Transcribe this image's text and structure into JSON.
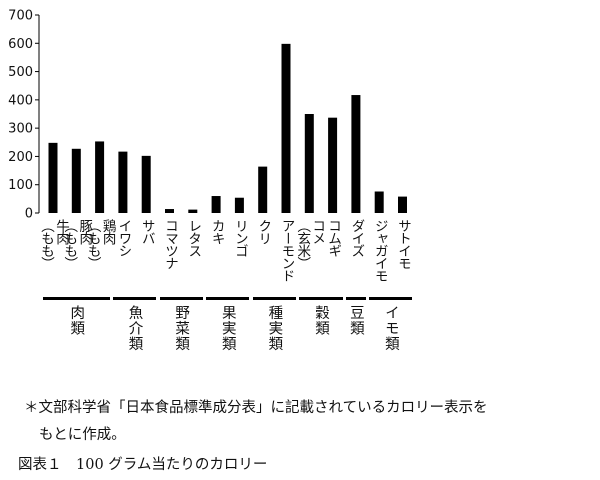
{
  "chart_data": {
    "type": "bar",
    "title": "",
    "xlabel": "",
    "ylabel": "",
    "ylim": [
      0,
      700
    ],
    "yticks": [
      0,
      100,
      200,
      300,
      400,
      500,
      600,
      700
    ],
    "grid": false,
    "legend": "none",
    "bar_color": "#000000",
    "categories": [
      {
        "line1": "牛肉",
        "line2": "（もも）"
      },
      {
        "line1": "豚肉",
        "line2": "（もも）"
      },
      {
        "line1": "鶏肉",
        "line2": "（もも）"
      },
      {
        "line1": "イワシ",
        "line2": ""
      },
      {
        "line1": "サバ",
        "line2": ""
      },
      {
        "line1": "コマツナ",
        "line2": ""
      },
      {
        "line1": "レタス",
        "line2": ""
      },
      {
        "line1": "カキ",
        "line2": ""
      },
      {
        "line1": "リンゴ",
        "line2": ""
      },
      {
        "line1": "クリ",
        "line2": ""
      },
      {
        "line1": "アーモンド",
        "line2": ""
      },
      {
        "line1": "コメ",
        "line2": "（玄米）"
      },
      {
        "line1": "コムギ",
        "line2": ""
      },
      {
        "line1": "ダイズ",
        "line2": ""
      },
      {
        "line1": "ジャガイモ",
        "line2": ""
      },
      {
        "line1": "サトイモ",
        "line2": ""
      }
    ],
    "values": [
      248,
      227,
      253,
      217,
      202,
      14,
      12,
      60,
      54,
      164,
      598,
      350,
      337,
      417,
      76,
      58
    ],
    "groups": [
      {
        "label": "肉類",
        "start": 0,
        "end": 2
      },
      {
        "label": "魚介類",
        "start": 3,
        "end": 4
      },
      {
        "label": "野菜類",
        "start": 5,
        "end": 6
      },
      {
        "label": "果実類",
        "start": 7,
        "end": 8
      },
      {
        "label": "種実類",
        "start": 9,
        "end": 10
      },
      {
        "label": "穀類",
        "start": 11,
        "end": 12
      },
      {
        "label": "豆類",
        "start": 13,
        "end": 13
      },
      {
        "label": "イモ類",
        "start": 14,
        "end": 15
      }
    ]
  },
  "footnote": {
    "line1": "＊文部科学省「日本食品標準成分表」に記載されているカロリー表示を",
    "line2": "もとに作成。"
  },
  "caption": "図表１　100 グラム当たりのカロリー"
}
